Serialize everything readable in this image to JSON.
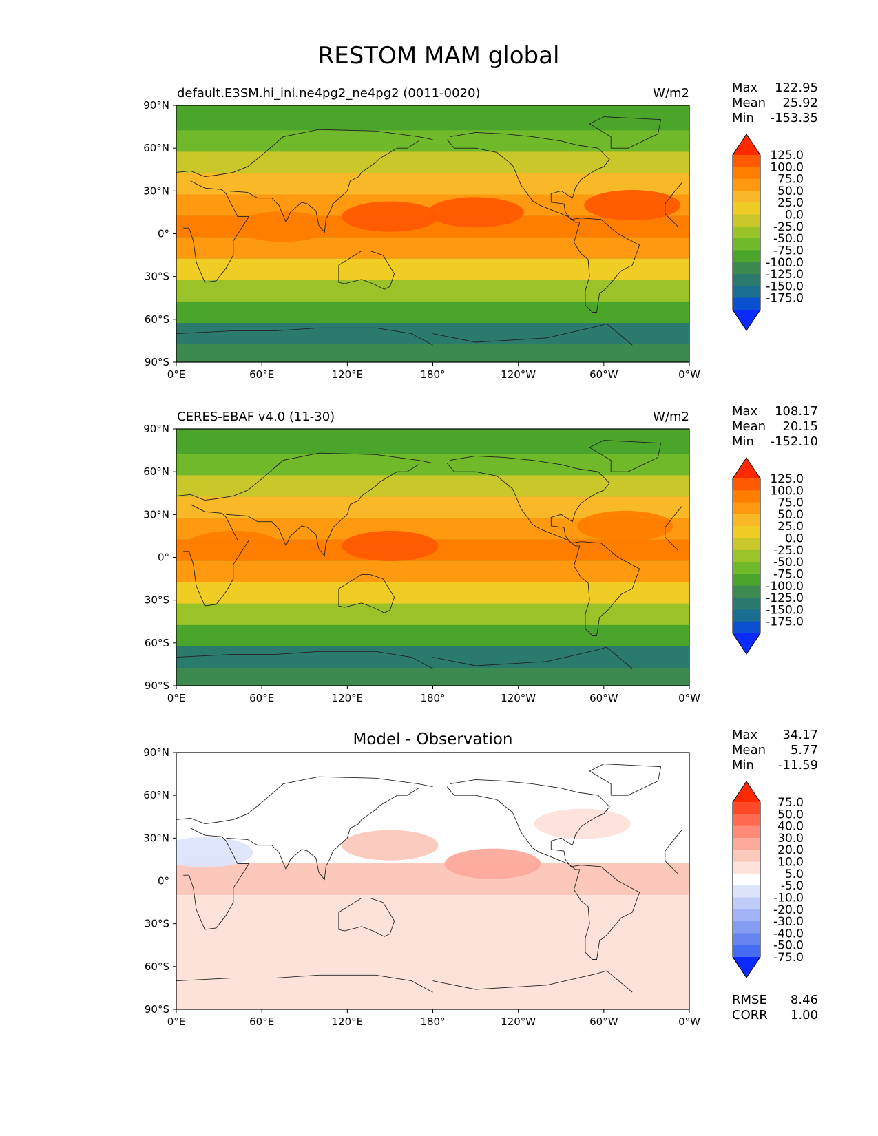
{
  "page": {
    "title": "RESTOM MAM global"
  },
  "map": {
    "lat_ticks": [
      "90°N",
      "60°N",
      "30°N",
      "0°",
      "30°S",
      "60°S",
      "90°S"
    ],
    "lon_ticks": [
      "0°E",
      "60°E",
      "120°E",
      "180°",
      "120°W",
      "60°W",
      "0°W"
    ]
  },
  "stats_labels": {
    "max": "Max",
    "mean": "Mean",
    "min": "Min",
    "rmse": "RMSE",
    "corr": "CORR"
  },
  "chart_data": [
    {
      "type": "heatmap",
      "title": "default.E3SM.hi_ini.ne4pg2_ne4pg2 (0011-0020)",
      "units": "W/m2",
      "stats": {
        "max": "122.95",
        "mean": "25.92",
        "min": "-153.35"
      },
      "x_range": [
        0,
        360
      ],
      "y_range": [
        -90,
        90
      ],
      "colorbar": {
        "levels": [
          "125.0",
          "100.0",
          "75.0",
          "50.0",
          "25.0",
          "0.0",
          "-25.0",
          "-50.0",
          "-75.0",
          "-100.0",
          "-125.0",
          "-150.0",
          "-175.0"
        ],
        "colors": [
          "#ff2a00",
          "#ff5a00",
          "#ff7e00",
          "#ff9a10",
          "#f8b828",
          "#efcd25",
          "#c9c72a",
          "#9ac32a",
          "#6fb92a",
          "#4aa52a",
          "#3d8a50",
          "#2a7a6e",
          "#1a6e90",
          "#0a50d0",
          "#0a2aff"
        ]
      },
      "bands": [
        {
          "lat": 80,
          "value": -90
        },
        {
          "lat": 65,
          "value": -60
        },
        {
          "lat": 50,
          "value": 0
        },
        {
          "lat": 35,
          "value": 45
        },
        {
          "lat": 20,
          "value": 65
        },
        {
          "lat": 5,
          "value": 85
        },
        {
          "lat": -10,
          "value": 70
        },
        {
          "lat": -25,
          "value": 10
        },
        {
          "lat": -40,
          "value": -40
        },
        {
          "lat": -55,
          "value": -95
        },
        {
          "lat": -70,
          "value": -140
        },
        {
          "lat": -85,
          "value": -115
        }
      ],
      "blobs": [
        {
          "lon": 150,
          "lat": 12,
          "value": 110
        },
        {
          "lon": 210,
          "lat": 15,
          "value": 112
        },
        {
          "lon": 320,
          "lat": 20,
          "value": 105
        },
        {
          "lon": 75,
          "lat": 5,
          "value": 100
        }
      ]
    },
    {
      "type": "heatmap",
      "title": "CERES-EBAF v4.0 (11-30)",
      "units": "W/m2",
      "stats": {
        "max": "108.17",
        "mean": "20.15",
        "min": "-152.10"
      },
      "x_range": [
        0,
        360
      ],
      "y_range": [
        -90,
        90
      ],
      "colorbar": {
        "levels": [
          "125.0",
          "100.0",
          "75.0",
          "50.0",
          "25.0",
          "0.0",
          "-25.0",
          "-50.0",
          "-75.0",
          "-100.0",
          "-125.0",
          "-150.0",
          "-175.0"
        ],
        "colors": [
          "#ff2a00",
          "#ff5a00",
          "#ff7e00",
          "#ff9a10",
          "#f8b828",
          "#efcd25",
          "#c9c72a",
          "#9ac32a",
          "#6fb92a",
          "#4aa52a",
          "#3d8a50",
          "#2a7a6e",
          "#1a6e90",
          "#0a50d0",
          "#0a2aff"
        ]
      },
      "bands": [
        {
          "lat": 80,
          "value": -90
        },
        {
          "lat": 65,
          "value": -60
        },
        {
          "lat": 50,
          "value": -10
        },
        {
          "lat": 35,
          "value": 35
        },
        {
          "lat": 20,
          "value": 60
        },
        {
          "lat": 5,
          "value": 78
        },
        {
          "lat": -10,
          "value": 65
        },
        {
          "lat": -25,
          "value": 5
        },
        {
          "lat": -40,
          "value": -45
        },
        {
          "lat": -55,
          "value": -95
        },
        {
          "lat": -70,
          "value": -140
        },
        {
          "lat": -85,
          "value": -115
        }
      ],
      "blobs": [
        {
          "lon": 150,
          "lat": 8,
          "value": 102
        },
        {
          "lon": 315,
          "lat": 22,
          "value": 100
        },
        {
          "lon": 40,
          "lat": 8,
          "value": 100
        }
      ]
    },
    {
      "type": "heatmap",
      "title": "Model - Observation",
      "units": "",
      "stats": {
        "max": "34.17",
        "mean": "5.77",
        "min": "-11.59"
      },
      "rmse": "8.46",
      "corr": "1.00",
      "x_range": [
        0,
        360
      ],
      "y_range": [
        -90,
        90
      ],
      "colorbar": {
        "levels": [
          "75.0",
          "50.0",
          "40.0",
          "30.0",
          "20.0",
          "10.0",
          "5.0",
          "-5.0",
          "-10.0",
          "-20.0",
          "-30.0",
          "-40.0",
          "-50.0",
          "-75.0"
        ],
        "colors": [
          "#ff2a00",
          "#ff4a2a",
          "#ff6a50",
          "#ff8a78",
          "#fdaa9c",
          "#fcc8bc",
          "#fde2da",
          "#ffffff",
          "#dde4fb",
          "#c0ccf8",
          "#a2b4f5",
          "#849cf2",
          "#6684ef",
          "#446cf0",
          "#0a2aff"
        ]
      },
      "bands": [
        {
          "lat": 20,
          "value": 2
        },
        {
          "lat": 5,
          "value": 12
        },
        {
          "lat": -25,
          "value": 7
        },
        {
          "lat": -80,
          "value": 6
        }
      ],
      "blobs": [
        {
          "lon": 150,
          "lat": 25,
          "value": 18
        },
        {
          "lon": 222,
          "lat": 12,
          "value": 25
        },
        {
          "lon": 285,
          "lat": 40,
          "value": 7
        },
        {
          "lon": 20,
          "lat": 20,
          "value": -8
        }
      ]
    }
  ]
}
